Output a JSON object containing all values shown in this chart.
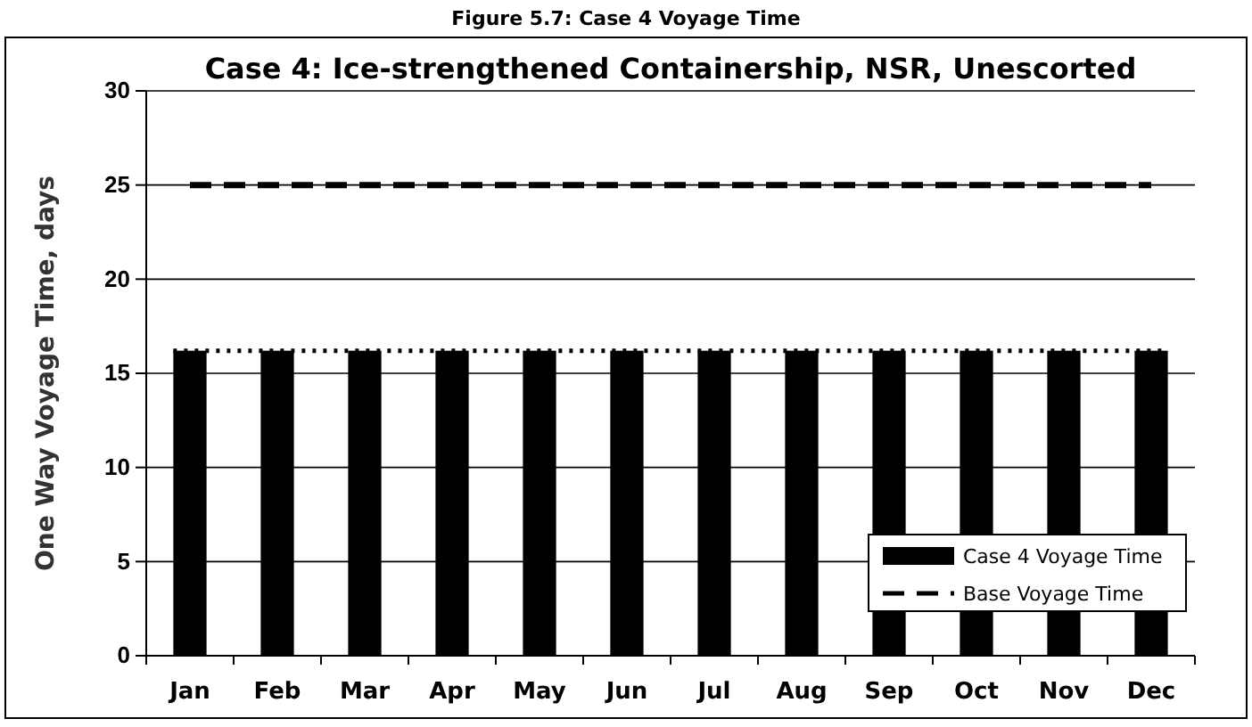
{
  "chart_data": {
    "type": "bar",
    "title": "Case 4: Ice-strengthened Containership, NSR, Unescorted",
    "subtitle": "Figure 5.7: Case 4 Voyage Time",
    "ylabel": "One Way Voyage Time, days",
    "categories": [
      "Jan",
      "Feb",
      "Mar",
      "Apr",
      "May",
      "Jun",
      "Jul",
      "Aug",
      "Sep",
      "Oct",
      "Nov",
      "Dec"
    ],
    "series": [
      {
        "name": "Case 4 Voyage Time",
        "color": "#000000",
        "values": [
          16.2,
          16.2,
          16.2,
          16.2,
          16.2,
          16.2,
          16.2,
          16.2,
          16.2,
          16.2,
          16.2,
          16.2
        ]
      },
      {
        "name": "Base Voyage Time",
        "type": "line",
        "color": "#000000",
        "line_style": "dashed",
        "values": [
          25,
          25,
          25,
          25,
          25,
          25,
          25,
          25,
          25,
          25,
          25,
          25
        ]
      }
    ],
    "ref_lines": [
      {
        "axis": "y",
        "value": 16.2,
        "color": "#000000",
        "line_style": "dotted"
      }
    ],
    "ylim": [
      0,
      30
    ],
    "yticks": [
      0,
      5,
      10,
      15,
      20,
      25,
      30
    ],
    "grid": "y",
    "legend": "bottom right"
  }
}
